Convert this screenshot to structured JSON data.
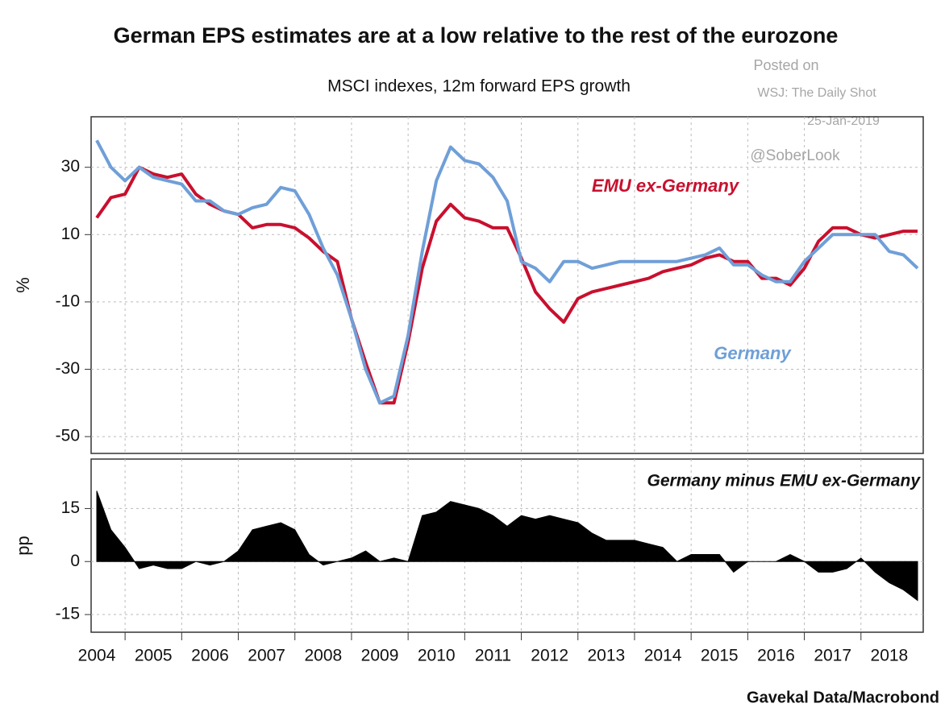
{
  "chart_data": [
    {
      "type": "line",
      "title": "German EPS estimates are at a low relative to the rest of the eurozone",
      "subtitle": "MSCI indexes, 12m forward EPS growth",
      "y_label": "%",
      "x": [
        2004.5,
        2004.75,
        2005,
        2005.25,
        2005.5,
        2005.75,
        2006,
        2006.25,
        2006.5,
        2006.75,
        2007,
        2007.25,
        2007.5,
        2007.75,
        2008,
        2008.25,
        2008.5,
        2008.75,
        2009,
        2009.25,
        2009.5,
        2009.75,
        2010,
        2010.25,
        2010.5,
        2010.75,
        2011,
        2011.25,
        2011.5,
        2011.75,
        2012,
        2012.25,
        2012.5,
        2012.75,
        2013,
        2013.25,
        2013.5,
        2013.75,
        2014,
        2014.25,
        2014.5,
        2014.75,
        2015,
        2015.25,
        2015.5,
        2015.75,
        2016,
        2016.25,
        2016.5,
        2016.75,
        2017,
        2017.25,
        2017.5,
        2017.75,
        2018,
        2018.25,
        2018.5,
        2018.75,
        2019
      ],
      "series": [
        {
          "name": "EMU ex-Germany",
          "color": "#c8102e",
          "values": [
            15,
            21,
            22,
            30,
            28,
            27,
            28,
            22,
            19,
            17,
            16,
            12,
            13,
            13,
            12,
            9,
            5,
            2,
            -15,
            -28,
            -40,
            -40,
            -22,
            0,
            14,
            19,
            15,
            14,
            12,
            12,
            3,
            -7,
            -12,
            -16,
            -9,
            -7,
            -6,
            -5,
            -4,
            -3,
            -1,
            0,
            1,
            3,
            4,
            2,
            2,
            -3,
            -3,
            -5,
            0,
            8,
            12,
            12,
            10,
            9,
            10,
            11,
            11
          ]
        },
        {
          "name": "Germany",
          "color": "#6f9fd8",
          "values": [
            38,
            30,
            26,
            30,
            27,
            26,
            25,
            20,
            20,
            17,
            16,
            18,
            19,
            24,
            23,
            16,
            6,
            -2,
            -15,
            -30,
            -40,
            -38,
            -20,
            5,
            26,
            36,
            32,
            31,
            27,
            20,
            2,
            0,
            -4,
            2,
            2,
            0,
            1,
            2,
            2,
            2,
            2,
            2,
            3,
            4,
            6,
            1,
            1,
            -2,
            -4,
            -4,
            2,
            6,
            10,
            10,
            10,
            10,
            5,
            4,
            0
          ]
        }
      ],
      "xlim": [
        2004.4,
        2019.1
      ],
      "ylim": [
        -55,
        45
      ],
      "yticks": [
        30,
        10,
        -10,
        -30,
        -50
      ],
      "grid": true
    },
    {
      "type": "area",
      "y_label": "pp",
      "annotation": "Germany minus EMU ex-Germany",
      "color": "#000000",
      "x": [
        2004.5,
        2004.75,
        2005,
        2005.25,
        2005.5,
        2005.75,
        2006,
        2006.25,
        2006.5,
        2006.75,
        2007,
        2007.25,
        2007.5,
        2007.75,
        2008,
        2008.25,
        2008.5,
        2008.75,
        2009,
        2009.25,
        2009.5,
        2009.75,
        2010,
        2010.25,
        2010.5,
        2010.75,
        2011,
        2011.25,
        2011.5,
        2011.75,
        2012,
        2012.25,
        2012.5,
        2012.75,
        2013,
        2013.25,
        2013.5,
        2013.75,
        2014,
        2014.25,
        2014.5,
        2014.75,
        2015,
        2015.25,
        2015.5,
        2015.75,
        2016,
        2016.25,
        2016.5,
        2016.75,
        2017,
        2017.25,
        2017.5,
        2017.75,
        2018,
        2018.25,
        2018.5,
        2018.75,
        2019
      ],
      "values": [
        20,
        9,
        4,
        -2,
        -1,
        -2,
        -2,
        0,
        -1,
        0,
        3,
        9,
        10,
        11,
        9,
        2,
        -1,
        0,
        1,
        3,
        0,
        1,
        0,
        13,
        14,
        17,
        16,
        15,
        13,
        10,
        13,
        12,
        13,
        12,
        11,
        8,
        6,
        6,
        6,
        5,
        4,
        0,
        2,
        2,
        2,
        -3,
        0,
        0,
        0,
        2,
        0,
        -3,
        -3,
        -2,
        1,
        -3,
        -6,
        -8,
        -11
      ],
      "xlim": [
        2004.4,
        2019.1
      ],
      "ylim": [
        -20,
        29
      ],
      "yticks": [
        15,
        0,
        -15
      ],
      "xticks": [
        2004,
        2005,
        2006,
        2007,
        2008,
        2009,
        2010,
        2011,
        2012,
        2013,
        2014,
        2015,
        2016,
        2017,
        2018
      ],
      "grid": true
    }
  ],
  "source": "Gavekal Data/Macrobond",
  "watermark": [
    "Posted on",
    "WSJ: The Daily Shot",
    "25-Jan-2019",
    "@SoberLook"
  ]
}
